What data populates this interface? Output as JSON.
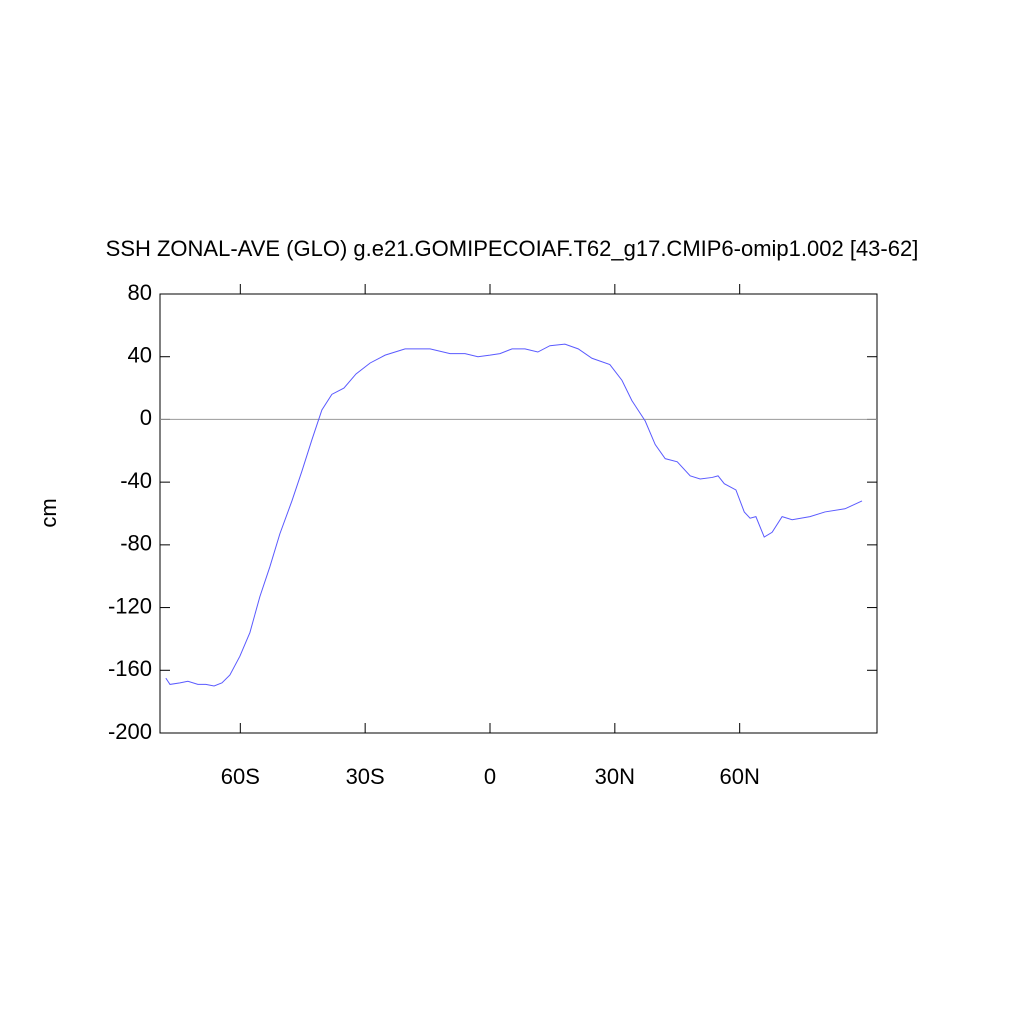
{
  "chart_data": {
    "type": "line",
    "title": "SSH ZONAL-AVE (GLO) g.e21.GOMIPECOIAF.T62_g17.CMIP6-omip1.002 [43-62]",
    "y_label": "cm",
    "xlim": [
      -79.3,
      93
    ],
    "ylim": [
      -200,
      80
    ],
    "xticks": [
      {
        "value": -60,
        "label": "60S"
      },
      {
        "value": -30,
        "label": "30S"
      },
      0,
      {
        "value": 30,
        "label": "30N"
      },
      {
        "value": 60,
        "label": "60N"
      }
    ],
    "yticks": [
      -200,
      -160,
      -120,
      -80,
      -40,
      0,
      40,
      80
    ],
    "reference_line": 0,
    "series": [
      {
        "name": "SSH",
        "color": "#5a5aff",
        "x": [
          -77.9,
          -76.9,
          -74.5,
          -72.6,
          -70.2,
          -68.3,
          -66.3,
          -64.4,
          -62.5,
          -60.1,
          -57.7,
          -55.3,
          -52.9,
          -50.5,
          -47.6,
          -45.2,
          -42.8,
          -40.4,
          -38,
          -35.1,
          -32.2,
          -28.8,
          -25.2,
          -20.4,
          -14.4,
          -9.6,
          -6,
          -2.9,
          0,
          2.4,
          5.3,
          8.4,
          11.5,
          14.4,
          18,
          21.2,
          24.5,
          28.8,
          31.7,
          34.1,
          37.3,
          39.7,
          42.1,
          45,
          48.1,
          50.5,
          53.4,
          54.8,
          56.3,
          59.1,
          61.1,
          62.5,
          63.9,
          65.9,
          67.8,
          70.2,
          72.6,
          76.9,
          80.5,
          85.3,
          89.4
        ],
        "values": [
          -165,
          -169,
          -168,
          -167,
          -169,
          -169,
          -170,
          -168,
          -163,
          -151,
          -136,
          -113,
          -94,
          -73,
          -52,
          -33,
          -13,
          6,
          16,
          20,
          29,
          36,
          41,
          45,
          45,
          42,
          42,
          40,
          41,
          42,
          45,
          45,
          43,
          47,
          48,
          45,
          39,
          35,
          25,
          12,
          -1,
          -16,
          -25,
          -27,
          -36,
          -38,
          -37,
          -36,
          -41,
          -45,
          -59,
          -63,
          -62,
          -75,
          -72,
          -62,
          -64,
          -62,
          -59,
          -57,
          -52
        ]
      }
    ]
  }
}
